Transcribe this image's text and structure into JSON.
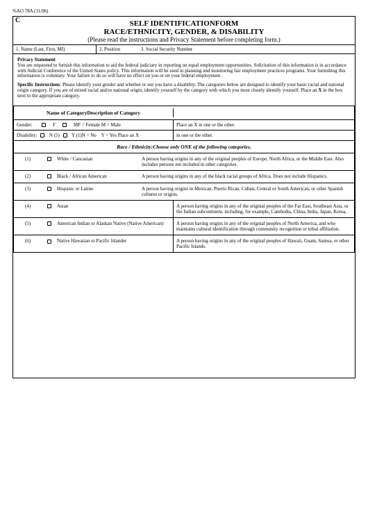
{
  "form_number": "%AO 78A (11/06)",
  "corner_letter": "C",
  "header": {
    "title1": "SELF IDENTIFICATIONFORM",
    "title2": "RACE/ETHNICITY, GENDER, & DISABILITY",
    "subtitle": "(Please read the instructions and Privacy Statement before completing form.)"
  },
  "fields": {
    "name_label": "1.  Name  (Last, First, MI)",
    "position_label": "2.  Position",
    "ssn_label": "3.  Social Security Number"
  },
  "privacy": {
    "title": "Privacy Statement",
    "text": "You are requested to furnish this information to aid the federal judiciary in reporting on equal employment opportunities.  Solicitation of this information is in accordance with Judicial Conference of the United States policy.  This information will be used in planning and monitoring fair employment practices programs.  Your furnishing this information is voluntary.  Your failure to do so will have no effect on you or on your federal employment."
  },
  "specific": {
    "title": "Specific Instructions",
    "text": ": Please identify your gender and whether or not you have a disability.  The categories below are designed to identify your basic racial and national origin category.  If you are of mixed racial and/or national origin, identify yourself by the category with which you most closely identify yourself.  Place an ",
    "x": "X",
    "tail": " in the box next to the appropriate category."
  },
  "cat_header_left": "Name of CategoryDescription of Category",
  "gender": {
    "label": "Gender:",
    "f": "F",
    "legend": "MF = Female  M = Male",
    "right": "Place an X in one or the other."
  },
  "disability": {
    "label": "Disability:",
    "n5": "N (5)",
    "y1n": "Y (1)N = No",
    "yyes": "Y = Yes    Place an X",
    "right": "in one or the other."
  },
  "race_header": "Race / Ethnicity:Choose only ONE of the following categories.",
  "races": [
    {
      "num": "(1)",
      "name": "White / Caucasian",
      "desc": "A person having origins in any of the original peoples of Europe, North Africa, or the Middle East.  Also includes persons not included in other categories."
    },
    {
      "num": "(2)",
      "name": "Black / African American",
      "desc": "A person having origins in any of the black racial groups of Africa.  Does not include Hispanics."
    },
    {
      "num": "(3)",
      "name": "Hispanic or Latino",
      "desc": "A person having origins in Mexican, Puerto Rican, Cuban, Central or South American, or other Spanish cultures or origins."
    },
    {
      "num": "(4)",
      "name": "Asian",
      "desc": "A person having origins in any of the original peoples of the Far East, Southeast Asia, or the Indian subcontinent,  including, for example, Cambodia, China, India, Japan, Korea,"
    },
    {
      "num": "(5)",
      "name": "American Indian or Alaskan Native (Native American)",
      "desc": "A person having origins in any of the original peoples of North America, and who maintains cultural identification through community recognition or tribal affiliation."
    },
    {
      "num": "(6)",
      "name": "Native Hawaiian or Pacific Islander",
      "desc": "A person having origins in any of the original peoples of Hawaii, Guam, Samoa, or other Pacific Islands."
    }
  ]
}
